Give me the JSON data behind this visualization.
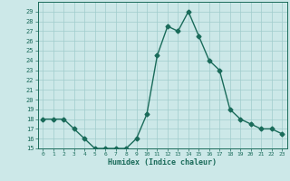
{
  "x": [
    0,
    1,
    2,
    3,
    4,
    5,
    6,
    7,
    8,
    9,
    10,
    11,
    12,
    13,
    14,
    15,
    16,
    17,
    18,
    19,
    20,
    21,
    22,
    23
  ],
  "y": [
    18,
    18,
    18,
    17,
    16,
    15,
    15,
    15,
    15,
    16,
    18.5,
    24.5,
    27.5,
    27,
    29,
    26.5,
    24,
    23,
    19,
    18,
    17.5,
    17,
    17,
    16.5
  ],
  "xlabel": "Humidex (Indice chaleur)",
  "ylim": [
    15,
    30
  ],
  "xlim_min": -0.5,
  "xlim_max": 23.5,
  "yticks": [
    15,
    16,
    17,
    18,
    19,
    20,
    21,
    22,
    23,
    24,
    25,
    26,
    27,
    28,
    29
  ],
  "xticks": [
    0,
    1,
    2,
    3,
    4,
    5,
    6,
    7,
    8,
    9,
    10,
    11,
    12,
    13,
    14,
    15,
    16,
    17,
    18,
    19,
    20,
    21,
    22,
    23
  ],
  "line_color": "#1a6b5a",
  "bg_color": "#cce8e8",
  "grid_color": "#a0cccc",
  "marker": "D",
  "marker_size": 2.5,
  "line_width": 1.0
}
